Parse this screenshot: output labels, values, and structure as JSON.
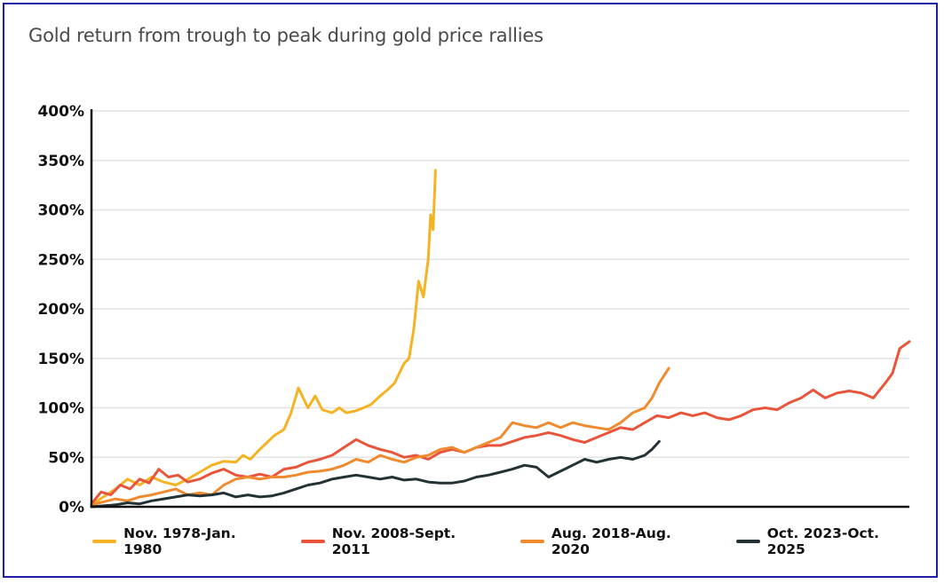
{
  "chart_data": {
    "type": "line",
    "title": "Gold return from trough to peak during gold price rallies",
    "xlabel": "",
    "ylabel": "",
    "x_unit": "months since trough (approx.)",
    "xlim": [
      0,
      34
    ],
    "ylim": [
      0,
      400
    ],
    "y_ticks": [
      "0%",
      "50%",
      "100%",
      "150%",
      "200%",
      "250%",
      "300%",
      "350%",
      "400%"
    ],
    "grid": true,
    "legend_position": "bottom",
    "series": [
      {
        "name": "Nov. 1978-Jan. 1980",
        "color": "#f5b323",
        "x": [
          0,
          0.5,
          1,
          1.5,
          2,
          2.5,
          3,
          3.5,
          4,
          4.5,
          5,
          5.5,
          6,
          6.3,
          6.6,
          7,
          7.3,
          7.6,
          8,
          8.3,
          8.6,
          9,
          9.3,
          9.6,
          10,
          10.3,
          10.6,
          11,
          11.3,
          11.6,
          12,
          12.3,
          12.6,
          12.8,
          13,
          13.2,
          13.4,
          13.6,
          13.8,
          14,
          14.1,
          14.2,
          14.3
        ],
        "values": [
          2,
          10,
          18,
          28,
          22,
          30,
          25,
          22,
          28,
          35,
          42,
          46,
          45,
          52,
          48,
          58,
          65,
          72,
          78,
          95,
          120,
          100,
          112,
          98,
          95,
          100,
          95,
          97,
          100,
          103,
          112,
          118,
          125,
          135,
          145,
          150,
          180,
          228,
          212,
          250,
          295,
          280,
          340
        ]
      },
      {
        "name": "Nov. 2008-Sept. 2011",
        "color": "#e8553a",
        "x": [
          0,
          0.4,
          0.8,
          1.2,
          1.6,
          2,
          2.4,
          2.8,
          3.2,
          3.6,
          4,
          4.5,
          5,
          5.5,
          6,
          6.5,
          7,
          7.5,
          8,
          8.5,
          9,
          9.5,
          10,
          10.5,
          11,
          11.5,
          12,
          12.5,
          13,
          13.5,
          14,
          14.5,
          15,
          15.5,
          16,
          16.5,
          17,
          17.5,
          18,
          18.5,
          19,
          19.5,
          20,
          20.5,
          21,
          21.5,
          22,
          22.5,
          23,
          23.5,
          24,
          24.5,
          25,
          25.5,
          26,
          26.5,
          27,
          27.5,
          28,
          28.5,
          29,
          29.5,
          30,
          30.5,
          31,
          31.5,
          32,
          32.5,
          33,
          33.3,
          33.6,
          34
        ],
        "values": [
          3,
          15,
          12,
          22,
          18,
          28,
          24,
          38,
          30,
          32,
          25,
          28,
          34,
          38,
          32,
          30,
          33,
          30,
          38,
          40,
          45,
          48,
          52,
          60,
          68,
          62,
          58,
          55,
          50,
          52,
          48,
          55,
          58,
          55,
          60,
          62,
          62,
          66,
          70,
          72,
          75,
          72,
          68,
          65,
          70,
          75,
          80,
          78,
          85,
          92,
          90,
          95,
          92,
          95,
          90,
          88,
          92,
          98,
          100,
          98,
          105,
          110,
          118,
          110,
          115,
          117,
          115,
          110,
          125,
          135,
          160,
          167
        ]
      },
      {
        "name": "Aug. 2018-Aug. 2020",
        "color": "#f08a2e",
        "x": [
          0,
          0.5,
          1,
          1.5,
          2,
          2.5,
          3,
          3.5,
          4,
          4.5,
          5,
          5.5,
          6,
          6.5,
          7,
          7.5,
          8,
          8.5,
          9,
          9.5,
          10,
          10.5,
          11,
          11.5,
          12,
          12.5,
          13,
          13.5,
          14,
          14.5,
          15,
          15.5,
          16,
          16.5,
          17,
          17.5,
          18,
          18.5,
          19,
          19.5,
          20,
          20.5,
          21,
          21.5,
          22,
          22.5,
          23,
          23.3,
          23.6,
          24
        ],
        "values": [
          2,
          5,
          8,
          6,
          10,
          12,
          15,
          18,
          12,
          14,
          12,
          22,
          28,
          30,
          28,
          30,
          30,
          32,
          35,
          36,
          38,
          42,
          48,
          45,
          52,
          48,
          45,
          50,
          52,
          58,
          60,
          55,
          60,
          65,
          70,
          85,
          82,
          80,
          85,
          80,
          85,
          82,
          80,
          78,
          85,
          95,
          100,
          110,
          125,
          140
        ]
      },
      {
        "name": "Oct. 2023-Oct. 2025",
        "color": "#243236",
        "x": [
          0,
          0.5,
          1,
          1.5,
          2,
          2.5,
          3,
          3.5,
          4,
          4.5,
          5,
          5.5,
          6,
          6.5,
          7,
          7.5,
          8,
          8.5,
          9,
          9.5,
          10,
          10.5,
          11,
          11.5,
          12,
          12.5,
          13,
          13.5,
          14,
          14.5,
          15,
          15.5,
          16,
          16.5,
          17,
          17.5,
          18,
          18.5,
          19,
          19.5,
          20,
          20.5,
          21,
          21.5,
          22,
          22.5,
          23,
          23.3,
          23.6
        ],
        "values": [
          0,
          1,
          2,
          4,
          3,
          6,
          8,
          10,
          12,
          11,
          12,
          14,
          10,
          12,
          10,
          11,
          14,
          18,
          22,
          24,
          28,
          30,
          32,
          30,
          28,
          30,
          27,
          28,
          25,
          24,
          24,
          26,
          30,
          32,
          35,
          38,
          42,
          40,
          30,
          36,
          42,
          48,
          45,
          48,
          50,
          48,
          52,
          58,
          66
        ]
      }
    ]
  }
}
